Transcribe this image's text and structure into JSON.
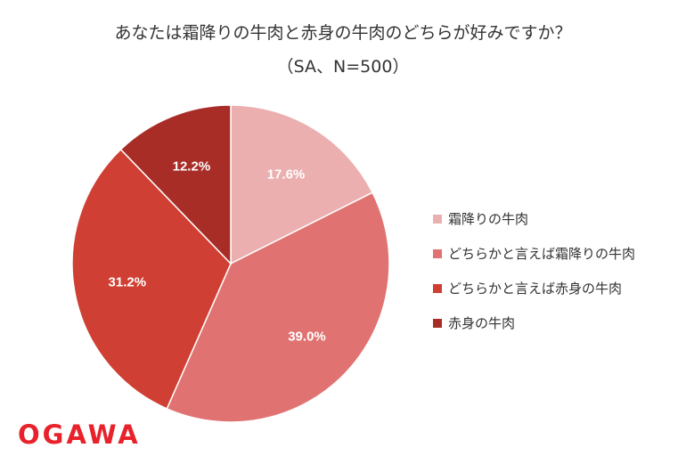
{
  "chart_data": {
    "type": "pie",
    "title": "あなたは霜降りの牛肉と赤身の牛肉のどちらが好みですか？",
    "subtitle": "（SA、N=500）",
    "categories": [
      "霜降りの牛肉",
      "どちらかと言えば霜降りの牛肉",
      "どちらかと言えば赤身の牛肉",
      "赤身の牛肉"
    ],
    "values": [
      17.6,
      39.0,
      31.2,
      12.2
    ],
    "value_labels": [
      "17.6%",
      "39.0%",
      "31.2%",
      "12.2%"
    ],
    "colors": [
      "#ecafaf",
      "#e07371",
      "#d03f33",
      "#a82d27"
    ],
    "legend_position": "right",
    "start_angle": "top, clockwise"
  },
  "brand": {
    "logo_text": "OGAWA",
    "logo_color": "#e8212a"
  }
}
